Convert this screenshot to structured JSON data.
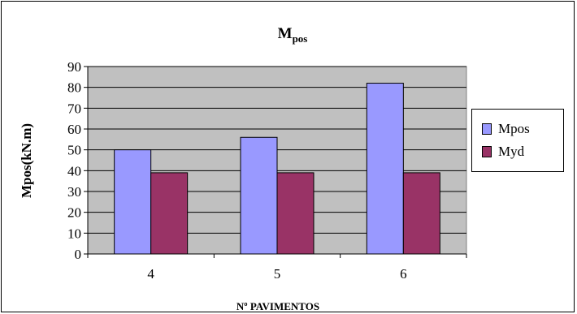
{
  "chart_data": {
    "type": "bar",
    "title": "M",
    "title_subscript": "pos",
    "xlabel": "Nº PAVIMENTOS",
    "ylabel": "Mpos(kN.m)",
    "categories": [
      "4",
      "5",
      "6"
    ],
    "series": [
      {
        "name": "Mpos",
        "values": [
          50,
          56,
          82
        ],
        "color": "#9999ff"
      },
      {
        "name": "Myd",
        "values": [
          39,
          39,
          39
        ],
        "color": "#993366"
      }
    ],
    "ylim": [
      0,
      90
    ],
    "yticks": [
      0,
      10,
      20,
      30,
      40,
      50,
      60,
      70,
      80,
      90
    ],
    "grid": true,
    "plot_background": "#c0c0c0",
    "legend_position": "right"
  }
}
